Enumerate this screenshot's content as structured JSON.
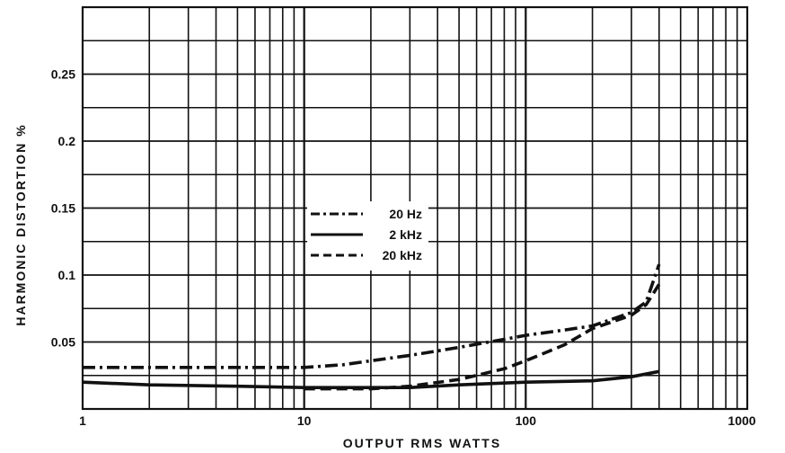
{
  "chart_data": {
    "type": "line",
    "xlabel": "OUTPUT  RMS  WATTS",
    "ylabel": "HARMONIC  DISTORTION %",
    "xscale": "log",
    "xlim": [
      1,
      1000
    ],
    "ylim": [
      0,
      0.3
    ],
    "x_ticks": [
      {
        "value": 1,
        "label": "1"
      },
      {
        "value": 10,
        "label": "10"
      },
      {
        "value": 100,
        "label": "100"
      },
      {
        "value": 1000,
        "label": "1000"
      }
    ],
    "y_ticks": [
      {
        "value": 0.05,
        "label": "0.05"
      },
      {
        "value": 0.1,
        "label": "0.1"
      },
      {
        "value": 0.15,
        "label": "0.15"
      },
      {
        "value": 0.2,
        "label": "0.2"
      },
      {
        "value": 0.25,
        "label": "0.25"
      }
    ],
    "grid": true,
    "legend_position": "center",
    "series": [
      {
        "name": "20 Hz",
        "style": "dashdot",
        "points": [
          [
            1,
            0.031
          ],
          [
            3,
            0.031
          ],
          [
            10,
            0.031
          ],
          [
            15,
            0.033
          ],
          [
            20,
            0.036
          ],
          [
            30,
            0.04
          ],
          [
            50,
            0.046
          ],
          [
            80,
            0.052
          ],
          [
            100,
            0.055
          ],
          [
            150,
            0.059
          ],
          [
            200,
            0.062
          ],
          [
            300,
            0.072
          ],
          [
            350,
            0.08
          ],
          [
            400,
            0.108
          ]
        ]
      },
      {
        "name": "2 kHz",
        "style": "solid",
        "points": [
          [
            1,
            0.02
          ],
          [
            2,
            0.018
          ],
          [
            5,
            0.017
          ],
          [
            10,
            0.016
          ],
          [
            20,
            0.016
          ],
          [
            30,
            0.016
          ],
          [
            50,
            0.018
          ],
          [
            100,
            0.02
          ],
          [
            200,
            0.021
          ],
          [
            300,
            0.024
          ],
          [
            400,
            0.028
          ]
        ]
      },
      {
        "name": "20 kHz",
        "style": "dashed",
        "points": [
          [
            10,
            0.015
          ],
          [
            20,
            0.015
          ],
          [
            30,
            0.017
          ],
          [
            50,
            0.022
          ],
          [
            80,
            0.03
          ],
          [
            100,
            0.036
          ],
          [
            150,
            0.048
          ],
          [
            200,
            0.06
          ],
          [
            300,
            0.07
          ],
          [
            350,
            0.078
          ],
          [
            400,
            0.093
          ]
        ]
      }
    ]
  }
}
